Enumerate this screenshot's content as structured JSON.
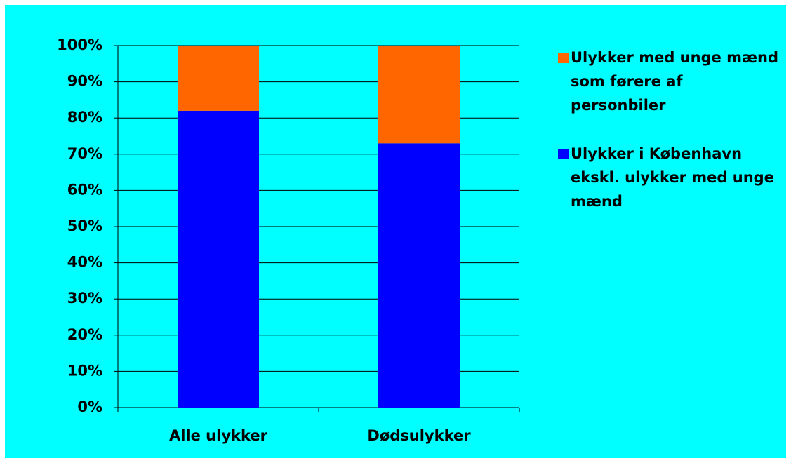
{
  "chart_data": {
    "type": "stacked_bar",
    "categories": [
      "Alle ulykker",
      "Dødsulykker"
    ],
    "series": [
      {
        "name": "Ulykker i København ekskl. ulykker med unge mænd",
        "color": "#0000ff",
        "values": [
          82,
          73
        ]
      },
      {
        "name": "Ulykker med unge mænd som førere af personbiler",
        "color": "#ff6600",
        "values": [
          18,
          27
        ]
      }
    ],
    "ylim": [
      0,
      100
    ],
    "yticks": [
      {
        "value": 0,
        "label": "0%"
      },
      {
        "value": 10,
        "label": "10%"
      },
      {
        "value": 20,
        "label": "20%"
      },
      {
        "value": 30,
        "label": "30%"
      },
      {
        "value": 40,
        "label": "40%"
      },
      {
        "value": 50,
        "label": "50%"
      },
      {
        "value": 60,
        "label": "60%"
      },
      {
        "value": 70,
        "label": "70%"
      },
      {
        "value": 80,
        "label": "80%"
      },
      {
        "value": 90,
        "label": "90%"
      },
      {
        "value": 100,
        "label": "100%"
      }
    ],
    "grid": true,
    "legend": "right"
  }
}
